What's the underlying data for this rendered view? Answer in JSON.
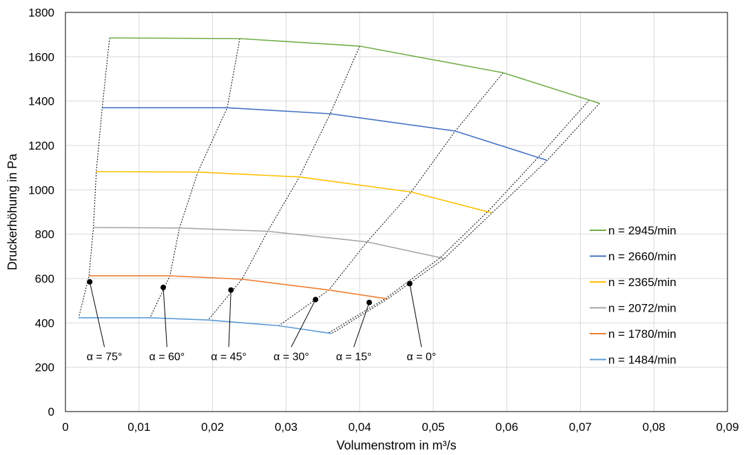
{
  "chart_data": {
    "type": "line",
    "title": "",
    "xlabel": "Volumenstrom in m³/s",
    "ylabel": "Druckerhöhung in Pa",
    "xlim": [
      0,
      0.09
    ],
    "ylim": [
      0,
      1800
    ],
    "x_ticks": [
      0,
      0.01,
      0.02,
      0.03,
      0.04,
      0.05,
      0.06,
      0.07,
      0.08,
      0.09
    ],
    "x_tick_labels": [
      "0",
      "0,01",
      "0,02",
      "0,03",
      "0,04",
      "0,05",
      "0,06",
      "0,07",
      "0,08",
      "0,09"
    ],
    "y_ticks": [
      0,
      200,
      400,
      600,
      800,
      1000,
      1200,
      1400,
      1600,
      1800
    ],
    "y_tick_labels": [
      "0",
      "200",
      "400",
      "600",
      "800",
      "1000",
      "1200",
      "1400",
      "1600",
      "1800"
    ],
    "grid": true,
    "legend_position": "right",
    "series": [
      {
        "name": "n = 2945/min",
        "color": "#70ad47",
        "points": [
          [
            0.006,
            1685
          ],
          [
            0.0237,
            1682
          ],
          [
            0.04,
            1648
          ],
          [
            0.0595,
            1528
          ],
          [
            0.0726,
            1390
          ]
        ]
      },
      {
        "name": "n = 2660/min",
        "color": "#4472c4",
        "points": [
          [
            0.005,
            1370
          ],
          [
            0.022,
            1370
          ],
          [
            0.036,
            1343
          ],
          [
            0.053,
            1265
          ],
          [
            0.0655,
            1133
          ]
        ]
      },
      {
        "name": "n = 2365/min",
        "color": "#ffc000",
        "points": [
          [
            0.0042,
            1082
          ],
          [
            0.018,
            1080
          ],
          [
            0.0318,
            1058
          ],
          [
            0.047,
            990
          ],
          [
            0.058,
            896
          ]
        ]
      },
      {
        "name": "n = 2072/min",
        "color": "#a5a5a5",
        "points": [
          [
            0.0038,
            830
          ],
          [
            0.0155,
            828
          ],
          [
            0.0275,
            813
          ],
          [
            0.041,
            765
          ],
          [
            0.0515,
            690
          ]
        ]
      },
      {
        "name": "n = 1780/min",
        "color": "#ed7d31",
        "points": [
          [
            0.0032,
            612
          ],
          [
            0.0142,
            612
          ],
          [
            0.024,
            597
          ],
          [
            0.0358,
            548
          ],
          [
            0.0438,
            508
          ]
        ]
      },
      {
        "name": "n = 1484/min",
        "color": "#5b9bd5",
        "points": [
          [
            0.0018,
            423
          ],
          [
            0.0115,
            423
          ],
          [
            0.0194,
            413
          ],
          [
            0.029,
            387
          ],
          [
            0.0362,
            352
          ]
        ]
      }
    ],
    "angle_lines": [
      {
        "label": "α = 75°",
        "points": [
          [
            0.006,
            1685
          ],
          [
            0.005,
            1370
          ],
          [
            0.0042,
            1082
          ],
          [
            0.0038,
            830
          ],
          [
            0.0032,
            612
          ],
          [
            0.0018,
            423
          ]
        ],
        "marker": [
          0.0033,
          585
        ],
        "label_at": [
          0.0053,
          232
        ]
      },
      {
        "label": "α = 60°",
        "points": [
          [
            0.0237,
            1682
          ],
          [
            0.022,
            1370
          ],
          [
            0.018,
            1080
          ],
          [
            0.0155,
            828
          ],
          [
            0.0142,
            612
          ],
          [
            0.0115,
            423
          ]
        ],
        "marker": [
          0.0133,
          560
        ],
        "label_at": [
          0.0138,
          232
        ]
      },
      {
        "label": "α = 45°",
        "points": [
          [
            0.04,
            1648
          ],
          [
            0.036,
            1343
          ],
          [
            0.0318,
            1058
          ],
          [
            0.0275,
            813
          ],
          [
            0.024,
            597
          ],
          [
            0.0194,
            413
          ]
        ],
        "marker": [
          0.0225,
          548
        ],
        "label_at": [
          0.0222,
          232
        ]
      },
      {
        "label": "α = 30°",
        "points": [
          [
            0.0595,
            1528
          ],
          [
            0.053,
            1265
          ],
          [
            0.047,
            990
          ],
          [
            0.041,
            765
          ],
          [
            0.0358,
            548
          ],
          [
            0.029,
            387
          ]
        ],
        "marker": [
          0.034,
          505
        ],
        "label_at": [
          0.0307,
          232
        ]
      },
      {
        "label": "α = 15°",
        "points": [
          [
            0.0712,
            1405
          ],
          [
            0.0645,
            1155
          ],
          [
            0.0575,
            905
          ],
          [
            0.051,
            695
          ],
          [
            0.0435,
            510
          ],
          [
            0.0358,
            355
          ]
        ],
        "marker": [
          0.0413,
          492
        ],
        "label_at": [
          0.0392,
          232
        ]
      },
      {
        "label": "α = 0°",
        "points": [
          [
            0.0726,
            1390
          ],
          [
            0.0655,
            1133
          ],
          [
            0.058,
            896
          ],
          [
            0.0515,
            690
          ],
          [
            0.0438,
            508
          ],
          [
            0.0362,
            352
          ]
        ],
        "marker": [
          0.0468,
          577
        ],
        "label_at": [
          0.0484,
          232
        ]
      }
    ]
  }
}
